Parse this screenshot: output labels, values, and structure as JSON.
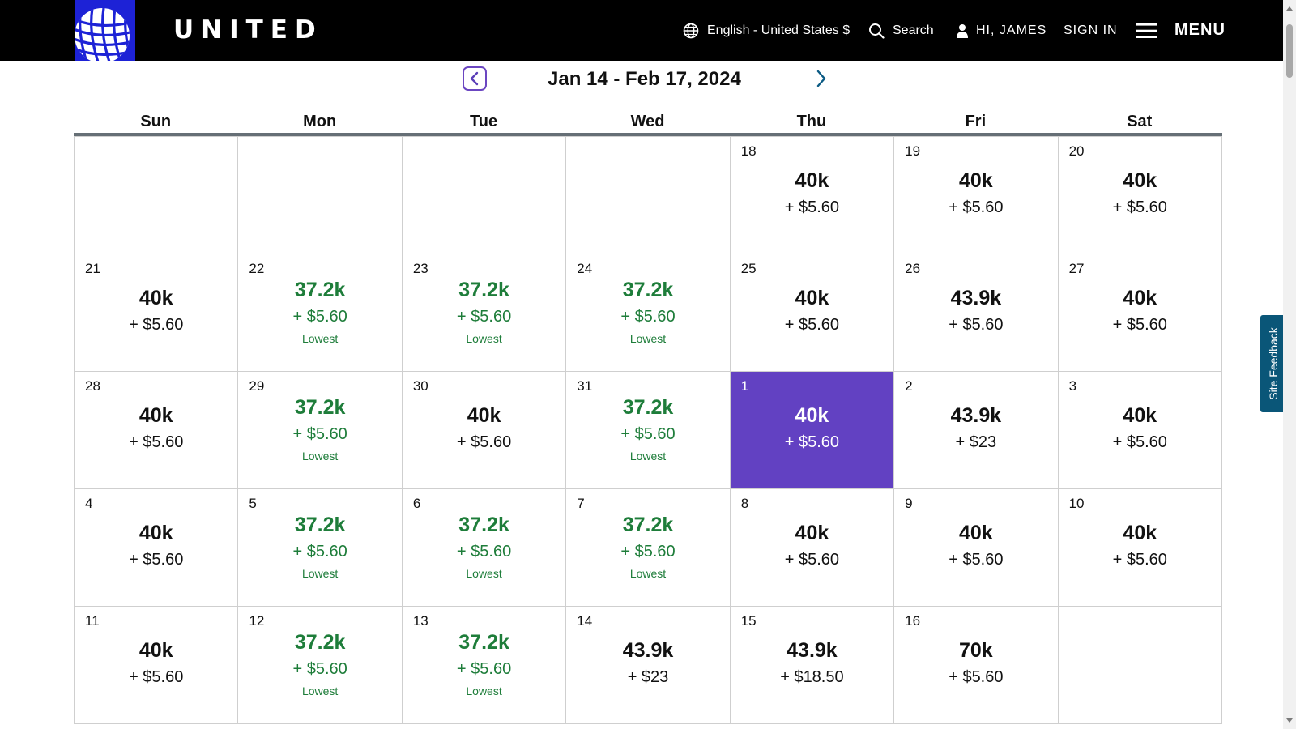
{
  "header": {
    "brand": "UNITED",
    "language": "English - United States $",
    "search": "Search",
    "greeting": "HI, JAMES",
    "sign_in": "SIGN IN",
    "menu": "MENU"
  },
  "range_label": "Jan 14 - Feb 17, 2024",
  "weekdays": [
    "Sun",
    "Mon",
    "Tue",
    "Wed",
    "Thu",
    "Fri",
    "Sat"
  ],
  "lowest_label": "Lowest",
  "weeks": [
    [
      {
        "empty": true
      },
      {
        "empty": true
      },
      {
        "empty": true
      },
      {
        "empty": true
      },
      {
        "day": "18",
        "miles": "40k",
        "fare": "+ $5.60"
      },
      {
        "day": "19",
        "miles": "40k",
        "fare": "+ $5.60"
      },
      {
        "day": "20",
        "miles": "40k",
        "fare": "+ $5.60"
      }
    ],
    [
      {
        "day": "21",
        "miles": "40k",
        "fare": "+ $5.60"
      },
      {
        "day": "22",
        "miles": "37.2k",
        "fare": "+ $5.60",
        "lowest": true
      },
      {
        "day": "23",
        "miles": "37.2k",
        "fare": "+ $5.60",
        "lowest": true
      },
      {
        "day": "24",
        "miles": "37.2k",
        "fare": "+ $5.60",
        "lowest": true
      },
      {
        "day": "25",
        "miles": "40k",
        "fare": "+ $5.60"
      },
      {
        "day": "26",
        "miles": "43.9k",
        "fare": "+ $5.60"
      },
      {
        "day": "27",
        "miles": "40k",
        "fare": "+ $5.60"
      }
    ],
    [
      {
        "day": "28",
        "miles": "40k",
        "fare": "+ $5.60"
      },
      {
        "day": "29",
        "miles": "37.2k",
        "fare": "+ $5.60",
        "lowest": true
      },
      {
        "day": "30",
        "miles": "40k",
        "fare": "+ $5.60"
      },
      {
        "day": "31",
        "miles": "37.2k",
        "fare": "+ $5.60",
        "lowest": true
      },
      {
        "day": "1",
        "miles": "40k",
        "fare": "+ $5.60",
        "selected": true
      },
      {
        "day": "2",
        "miles": "43.9k",
        "fare": "+ $23"
      },
      {
        "day": "3",
        "miles": "40k",
        "fare": "+ $5.60"
      }
    ],
    [
      {
        "day": "4",
        "miles": "40k",
        "fare": "+ $5.60"
      },
      {
        "day": "5",
        "miles": "37.2k",
        "fare": "+ $5.60",
        "lowest": true
      },
      {
        "day": "6",
        "miles": "37.2k",
        "fare": "+ $5.60",
        "lowest": true
      },
      {
        "day": "7",
        "miles": "37.2k",
        "fare": "+ $5.60",
        "lowest": true
      },
      {
        "day": "8",
        "miles": "40k",
        "fare": "+ $5.60"
      },
      {
        "day": "9",
        "miles": "40k",
        "fare": "+ $5.60"
      },
      {
        "day": "10",
        "miles": "40k",
        "fare": "+ $5.60"
      }
    ],
    [
      {
        "day": "11",
        "miles": "40k",
        "fare": "+ $5.60"
      },
      {
        "day": "12",
        "miles": "37.2k",
        "fare": "+ $5.60",
        "lowest": true
      },
      {
        "day": "13",
        "miles": "37.2k",
        "fare": "+ $5.60",
        "lowest": true
      },
      {
        "day": "14",
        "miles": "43.9k",
        "fare": "+ $23"
      },
      {
        "day": "15",
        "miles": "43.9k",
        "fare": "+ $18.50"
      },
      {
        "day": "16",
        "miles": "70k",
        "fare": "+ $5.60"
      },
      {
        "empty": true
      }
    ]
  ],
  "feedback_label": "Site Feedback",
  "colors": {
    "header_bg": "#000000",
    "logo_blue": "#1d22d6",
    "selected_purple": "#6241c2",
    "lowest_green": "#1e7d3a",
    "feedback_teal": "#0a5678"
  }
}
